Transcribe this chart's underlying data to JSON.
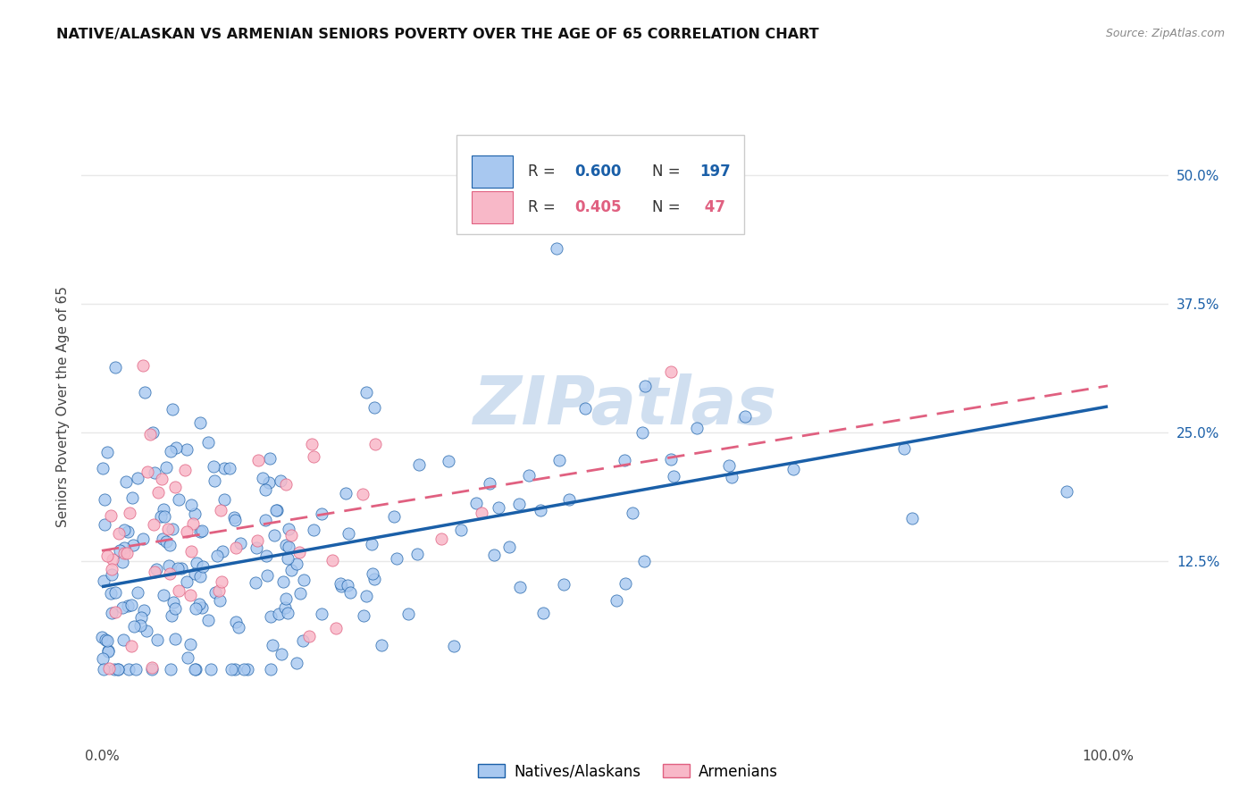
{
  "title": "NATIVE/ALASKAN VS ARMENIAN SENIORS POVERTY OVER THE AGE OF 65 CORRELATION CHART",
  "source": "Source: ZipAtlas.com",
  "ylabel": "Seniors Poverty Over the Age of 65",
  "blue_label": "Natives/Alaskans",
  "pink_label": "Armenians",
  "blue_R": 0.6,
  "blue_N": 197,
  "pink_R": 0.405,
  "pink_N": 47,
  "y_ticks": [
    0.125,
    0.25,
    0.375,
    0.5
  ],
  "y_tick_labels": [
    "12.5%",
    "25.0%",
    "37.5%",
    "50.0%"
  ],
  "xlim": [
    -0.02,
    1.06
  ],
  "ylim": [
    -0.05,
    0.6
  ],
  "blue_color": "#A8C8F0",
  "blue_line_color": "#1A5FA8",
  "pink_color": "#F8B8C8",
  "pink_line_color": "#E06080",
  "watermark": "ZIPatlas",
  "watermark_color": "#D0DFF0",
  "background_color": "#FFFFFF",
  "grid_color": "#E8E8E8",
  "seed_blue": 12,
  "seed_pink": 77,
  "blue_line_start_y": 0.1,
  "blue_line_end_y": 0.275,
  "pink_line_start_y": 0.135,
  "pink_line_end_y": 0.295
}
